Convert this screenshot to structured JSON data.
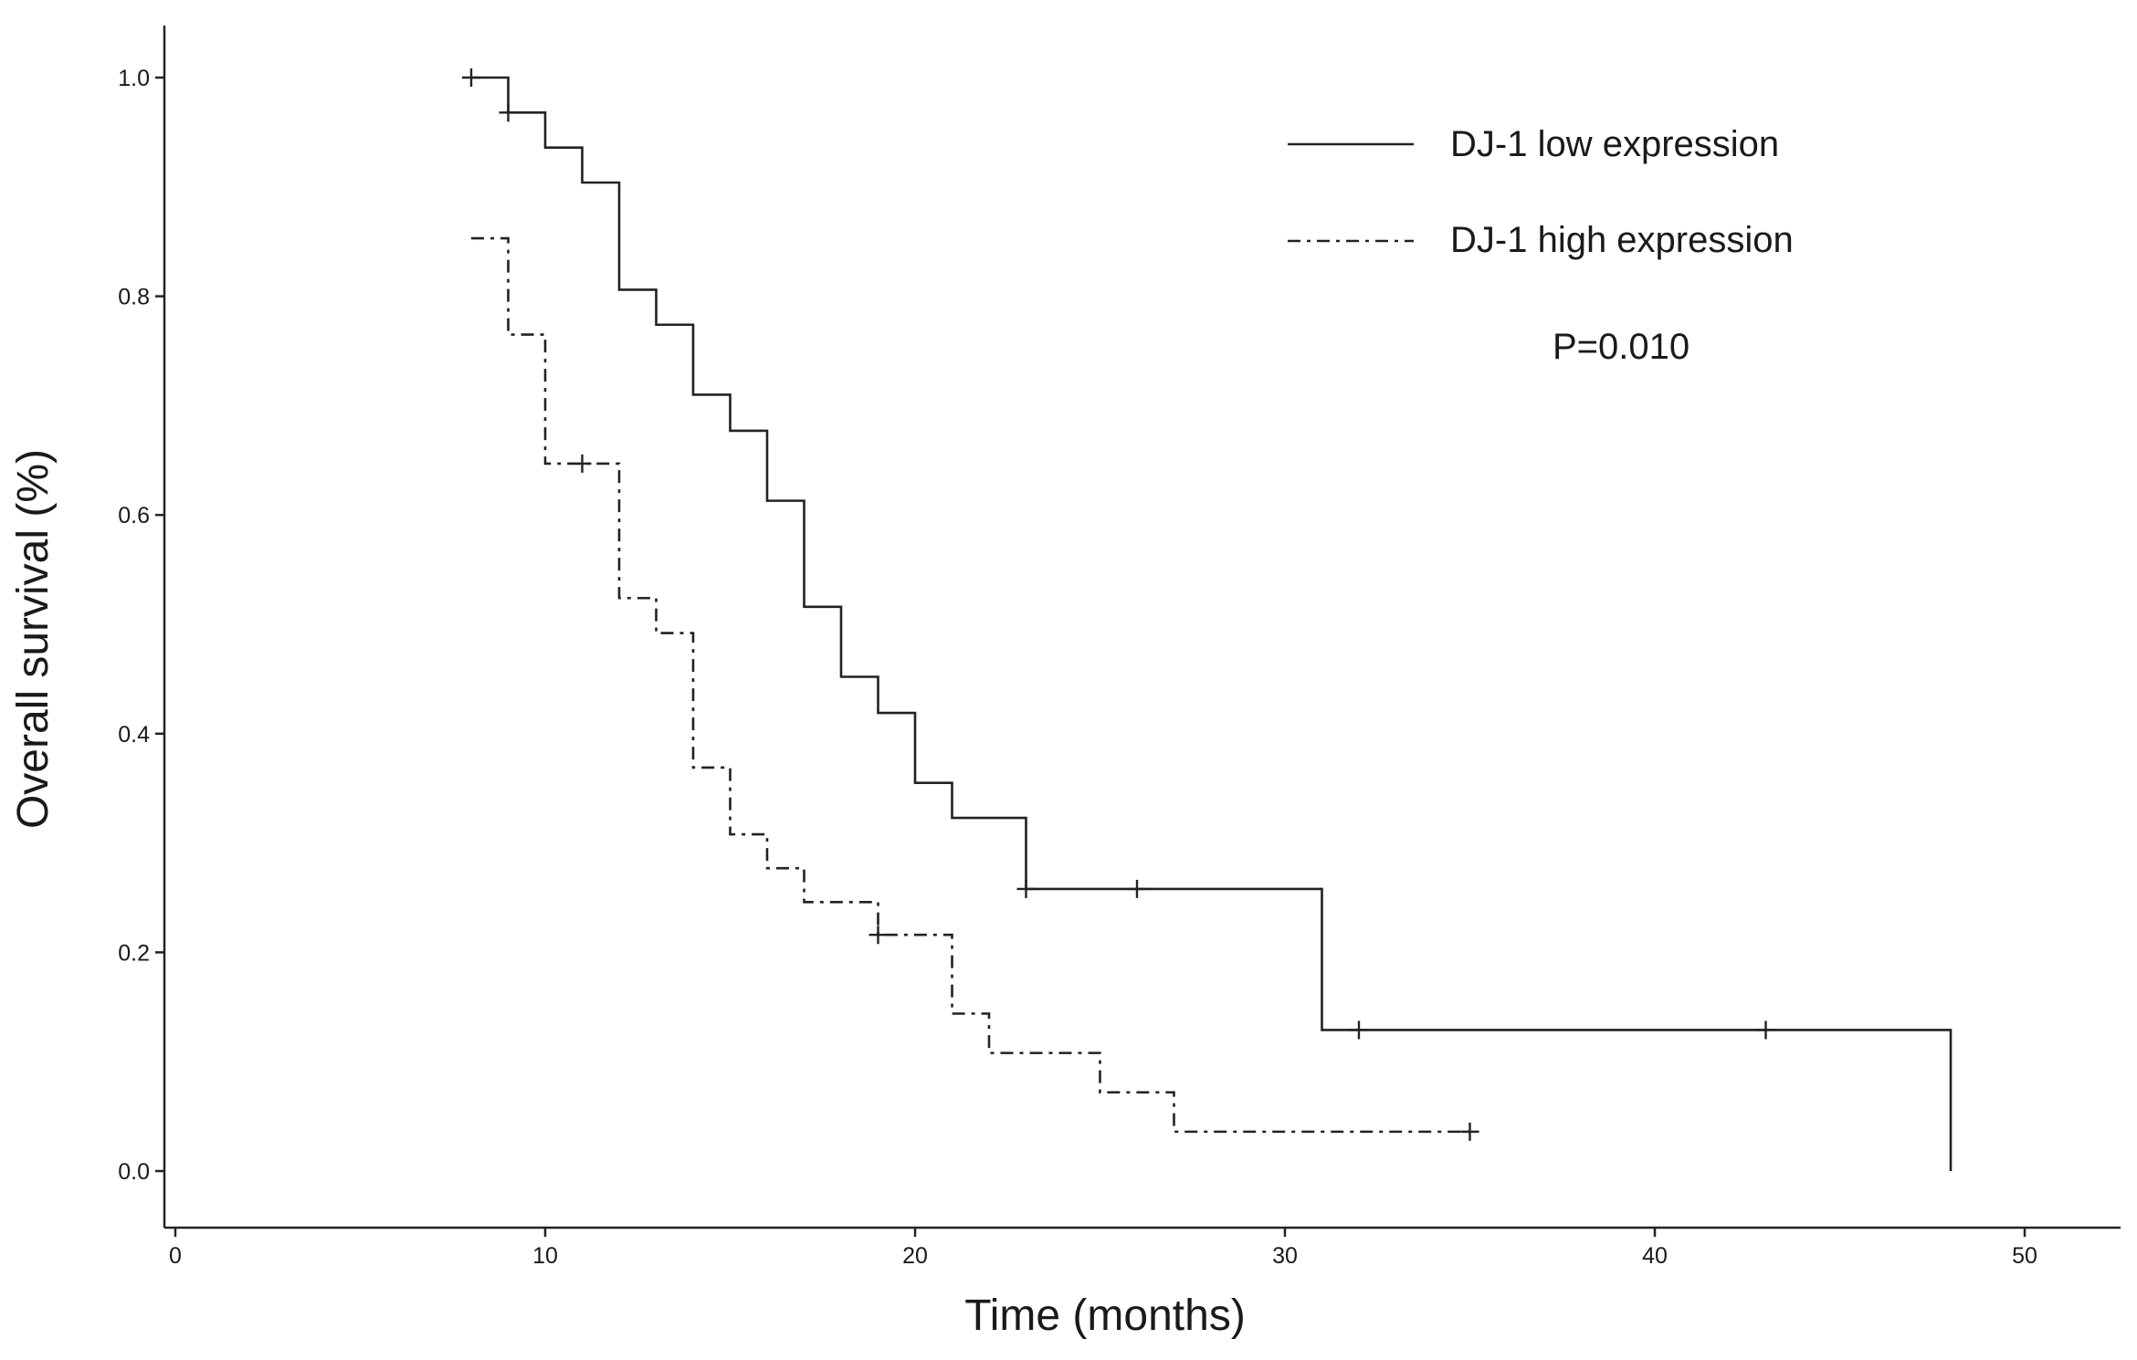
{
  "chart_data": {
    "type": "line",
    "subtype": "kaplan-meier",
    "title": "",
    "xlabel": "Time (months)",
    "ylabel": "Overall survival (%)",
    "xlim": [
      0,
      52.5
    ],
    "ylim": [
      -0.05,
      1.05
    ],
    "xticks": [
      0,
      10,
      20,
      30,
      40,
      50
    ],
    "yticks": [
      0.0,
      0.2,
      0.4,
      0.6,
      0.8,
      1.0
    ],
    "xtick_labels": [
      "0",
      "10",
      "20",
      "30",
      "40",
      "50"
    ],
    "ytick_labels": [
      "0.0",
      "0.2",
      "0.4",
      "0.6",
      "0.8",
      "1.0"
    ],
    "grid": false,
    "legend_position": "top-right",
    "annotation": "P=0.010",
    "series": [
      {
        "name": "DJ-1 low expression",
        "style": "solid",
        "color": "#222222",
        "steps": [
          [
            8,
            1.0
          ],
          [
            9,
            0.968
          ],
          [
            10,
            0.936
          ],
          [
            11,
            0.904
          ],
          [
            12,
            0.806
          ],
          [
            13,
            0.774
          ],
          [
            14,
            0.71
          ],
          [
            15,
            0.677
          ],
          [
            16,
            0.613
          ],
          [
            17,
            0.516
          ],
          [
            18,
            0.452
          ],
          [
            19,
            0.419
          ],
          [
            20,
            0.355
          ],
          [
            21,
            0.323
          ],
          [
            23,
            0.258
          ],
          [
            31,
            0.129
          ],
          [
            48,
            0.0
          ]
        ],
        "censored": [
          [
            8,
            1.0
          ],
          [
            9,
            0.968
          ],
          [
            23,
            0.258
          ],
          [
            26,
            0.258
          ],
          [
            32,
            0.129
          ],
          [
            43,
            0.129
          ]
        ]
      },
      {
        "name": "DJ-1 high expression",
        "style": "dashdot",
        "color": "#222222",
        "steps": [
          [
            8,
            0.853
          ],
          [
            9,
            0.765
          ],
          [
            10,
            0.647
          ],
          [
            12,
            0.524
          ],
          [
            13,
            0.492
          ],
          [
            14,
            0.369
          ],
          [
            15,
            0.308
          ],
          [
            16,
            0.277
          ],
          [
            17,
            0.246
          ],
          [
            19,
            0.216
          ],
          [
            21,
            0.144
          ],
          [
            22,
            0.108
          ],
          [
            25,
            0.072
          ],
          [
            27,
            0.036
          ],
          [
            35,
            0.036
          ]
        ],
        "censored": [
          [
            11,
            0.647
          ],
          [
            19,
            0.216
          ],
          [
            35,
            0.036
          ]
        ]
      }
    ]
  }
}
